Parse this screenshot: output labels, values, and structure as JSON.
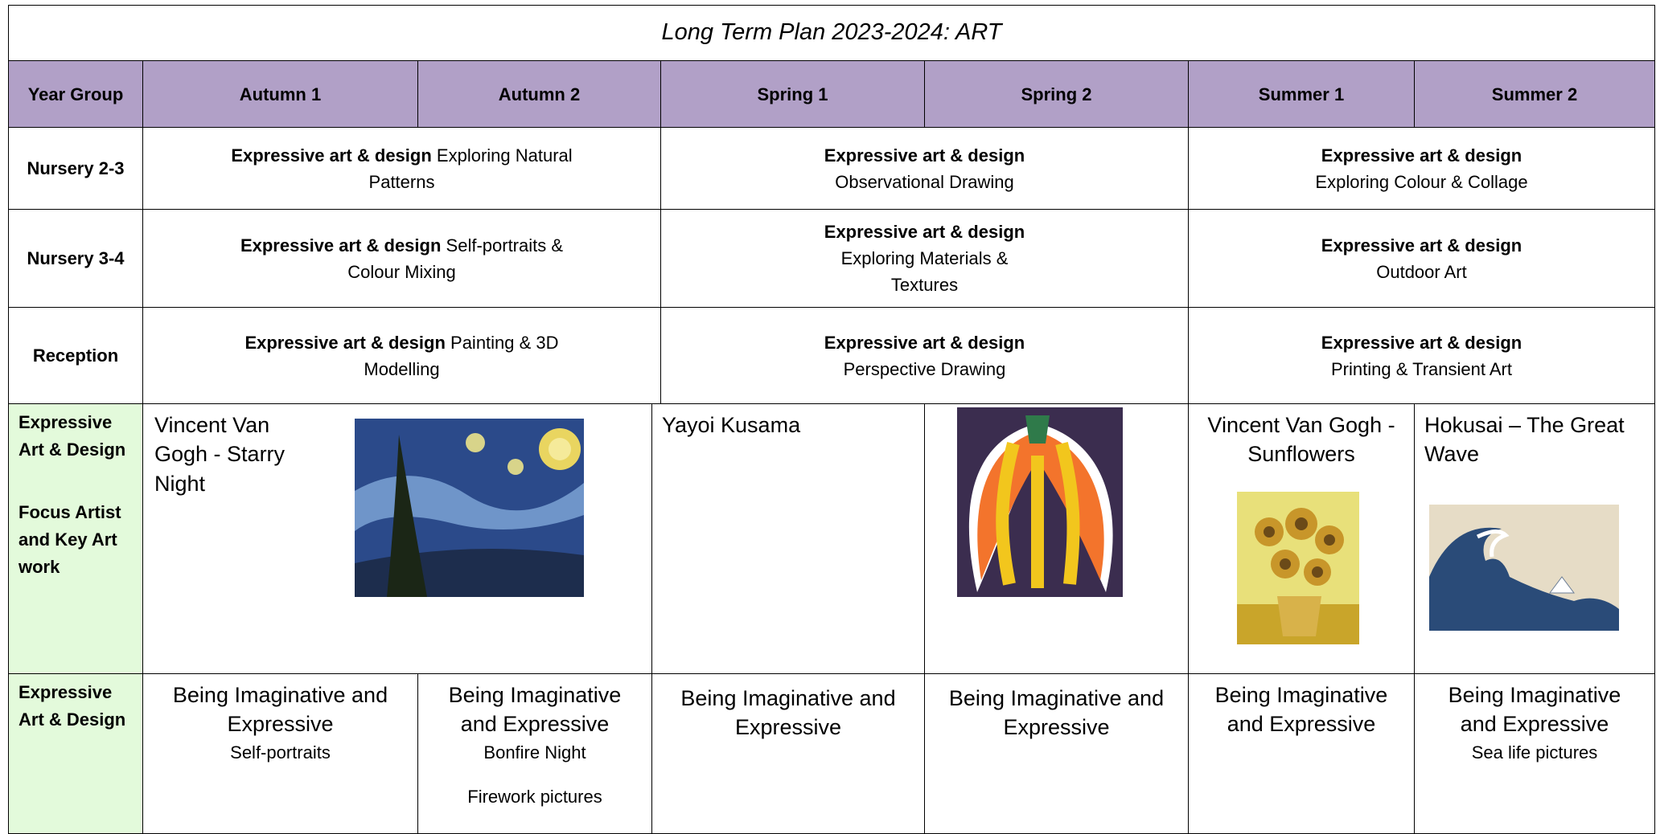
{
  "title": "Long Term Plan 2023-2024: ART",
  "header": [
    "Year Group",
    "Autumn 1",
    "Autumn 2",
    "Spring 1",
    "Spring 2",
    "Summer 1",
    "Summer 2"
  ],
  "rows": [
    {
      "label": "Nursery 2-3",
      "cells": [
        [
          "Expressive art & design",
          "Exploring Natural Patterns"
        ],
        [
          "Expressive art & design",
          "Observational Drawing"
        ],
        [
          "Expressive art & design",
          "Exploring Colour & Collage"
        ]
      ]
    },
    {
      "label": "Nursery 3-4",
      "cells": [
        [
          "Expressive art & design",
          "Self-portraits & Colour Mixing"
        ],
        [
          "Expressive art & design",
          "Exploring Materials & Textures"
        ],
        [
          "Expressive art & design",
          "Outdoor Art"
        ]
      ]
    },
    {
      "label": "Reception",
      "cells": [
        [
          "Expressive art & design",
          "Painting & 3D Modelling"
        ],
        [
          "Expressive art & design",
          "Perspective Drawing"
        ],
        [
          "Expressive art & design",
          "Printing & Transient Art"
        ]
      ]
    }
  ],
  "focus": {
    "label": [
      "Expressive Art & Design",
      "Focus Artist and Key Art work"
    ],
    "artists": [
      "Vincent Van Gogh -   Starry Night",
      "Yayoi Kusama",
      "Vincent Van Gogh - Sunflowers",
      "Hokusai – The Great Wave"
    ]
  },
  "skills": {
    "label": "Expressive Art & Design",
    "cells": [
      [
        "Being Imaginative and Expressive",
        "Self-portraits"
      ],
      [
        "Being Imaginative and Expressive",
        "Bonfire Night",
        "Firework pictures"
      ],
      [
        "Being Imaginative and Expressive"
      ],
      [
        "Being Imaginative and Expressive"
      ],
      [
        "Being Imaginative and Expressive"
      ],
      [
        "Being Imaginative and Expressive",
        "Sea life pictures"
      ]
    ]
  }
}
